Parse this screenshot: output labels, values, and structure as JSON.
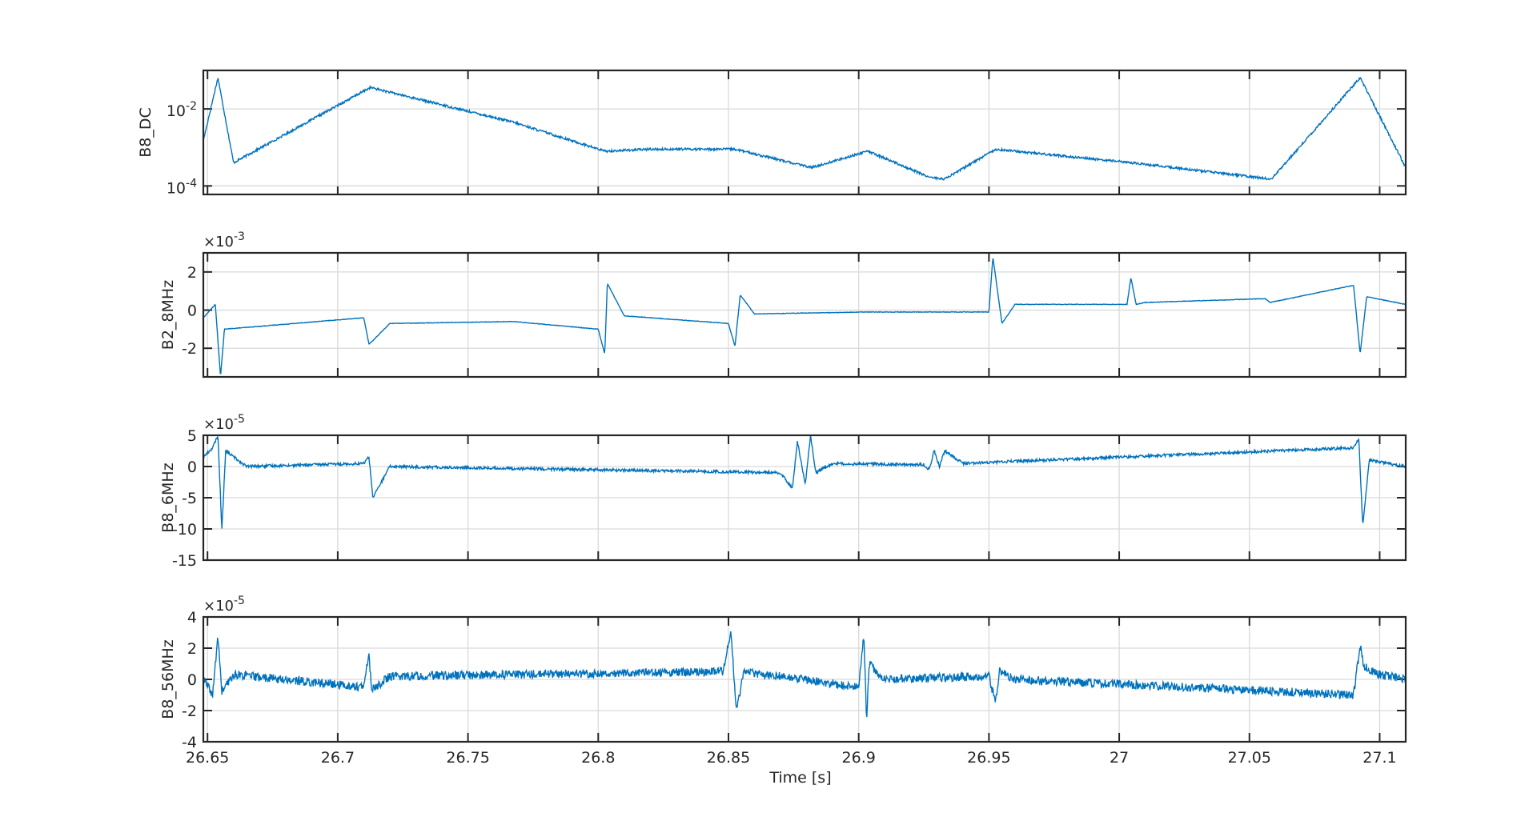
{
  "chart_data": [
    {
      "type": "line",
      "ylabel": "B8_DC",
      "yscale": "log",
      "ylim": [
        6e-05,
        0.1
      ],
      "yticks": [
        {
          "value": 0.01,
          "base": "10",
          "exp": "-2"
        },
        {
          "value": 0.0001,
          "base": "10",
          "exp": "-4"
        }
      ],
      "baseline": 0.0001,
      "x": [
        26.6484,
        26.654,
        26.66,
        26.7125,
        26.7675,
        26.8025,
        26.8205,
        26.8525,
        26.874,
        26.882,
        26.9035,
        26.927,
        26.933,
        26.9525,
        27.0045,
        27.0585,
        27.0925,
        27.11
      ],
      "values": [
        0.0015,
        0.065,
        0.0004,
        0.036,
        0.0045,
        0.0008,
        0.0009,
        0.0009,
        0.0004,
        0.0003,
        0.0008,
        0.00017,
        0.00015,
        0.0009,
        0.0004,
        0.00015,
        0.065,
        0.0003
      ],
      "grid": true
    },
    {
      "type": "line",
      "ylabel": "B2_8MHz",
      "exponent_base": "×10",
      "exponent": "-3",
      "ylim": [
        -3.5,
        3
      ],
      "yticks": [
        2,
        0,
        -2
      ],
      "x": [
        26.6484,
        26.653,
        26.655,
        26.6565,
        26.67,
        26.71,
        26.712,
        26.72,
        26.7675,
        26.8,
        26.8025,
        26.8035,
        26.81,
        26.85,
        26.8525,
        26.8545,
        26.86,
        26.903,
        26.95,
        26.9515,
        26.955,
        26.96,
        27.003,
        27.0045,
        27.0065,
        27.01,
        27.056,
        27.058,
        27.09,
        27.0925,
        27.095,
        27.11
      ],
      "values": [
        -0.4,
        0.3,
        -3.5,
        -1.0,
        -0.85,
        -0.4,
        -1.8,
        -0.7,
        -0.6,
        -1.0,
        -2.3,
        1.4,
        -0.3,
        -0.7,
        -1.9,
        0.8,
        -0.2,
        -0.1,
        -0.1,
        2.8,
        -0.7,
        0.3,
        0.3,
        1.7,
        0.3,
        0.4,
        0.6,
        0.4,
        1.3,
        -2.3,
        0.7,
        0.3
      ],
      "grid": true
    },
    {
      "type": "line",
      "ylabel": "B8_6MHz",
      "exponent_base": "×10",
      "exponent": "-5",
      "ylim": [
        -15,
        5
      ],
      "yticks": [
        5,
        0,
        -5,
        -10,
        -15
      ],
      "x": [
        26.6484,
        26.652,
        26.654,
        26.6555,
        26.657,
        26.665,
        26.71,
        26.712,
        26.7135,
        26.72,
        26.87,
        26.8745,
        26.8765,
        26.8795,
        26.8815,
        26.8835,
        26.89,
        26.925,
        26.927,
        26.929,
        26.931,
        26.933,
        26.94,
        27.09,
        27.092,
        27.0935,
        27.096,
        27.11
      ],
      "values": [
        1.5,
        3,
        5,
        -10,
        2.5,
        0,
        0.5,
        1.6,
        -5,
        0,
        -1,
        -3.5,
        4,
        -3,
        5,
        -1,
        0.5,
        0.3,
        -0.5,
        2.5,
        0,
        2.5,
        0.5,
        3,
        4.5,
        -9.5,
        1,
        0
      ],
      "grid": true
    },
    {
      "type": "line",
      "ylabel": "B8_56MHz",
      "xlabel": "Time [s]",
      "exponent_base": "×10",
      "exponent": "-5",
      "ylim": [
        -4,
        4
      ],
      "yticks": [
        4,
        2,
        0,
        -2,
        -4
      ],
      "xlim": [
        26.6484,
        27.11
      ],
      "xticks": [
        26.65,
        26.7,
        26.75,
        26.8,
        26.85,
        26.9,
        26.95,
        27,
        27.05,
        27.1
      ],
      "x": [
        26.6484,
        26.652,
        26.654,
        26.6555,
        26.66,
        26.71,
        26.712,
        26.713,
        26.72,
        26.848,
        26.851,
        26.853,
        26.856,
        26.9,
        26.902,
        26.903,
        26.904,
        26.91,
        26.95,
        26.9525,
        26.954,
        26.96,
        27.09,
        27.0925,
        27.094,
        27.1,
        27.11
      ],
      "values": [
        0,
        -1,
        2.8,
        -0.8,
        0.3,
        -0.5,
        1.7,
        -0.7,
        0.2,
        0.5,
        3,
        -2,
        0.5,
        -0.5,
        2.9,
        -2.8,
        1,
        0,
        0.2,
        -1.5,
        0.5,
        0,
        -1,
        2.2,
        0.8,
        0.3,
        0
      ],
      "grid": true
    }
  ]
}
